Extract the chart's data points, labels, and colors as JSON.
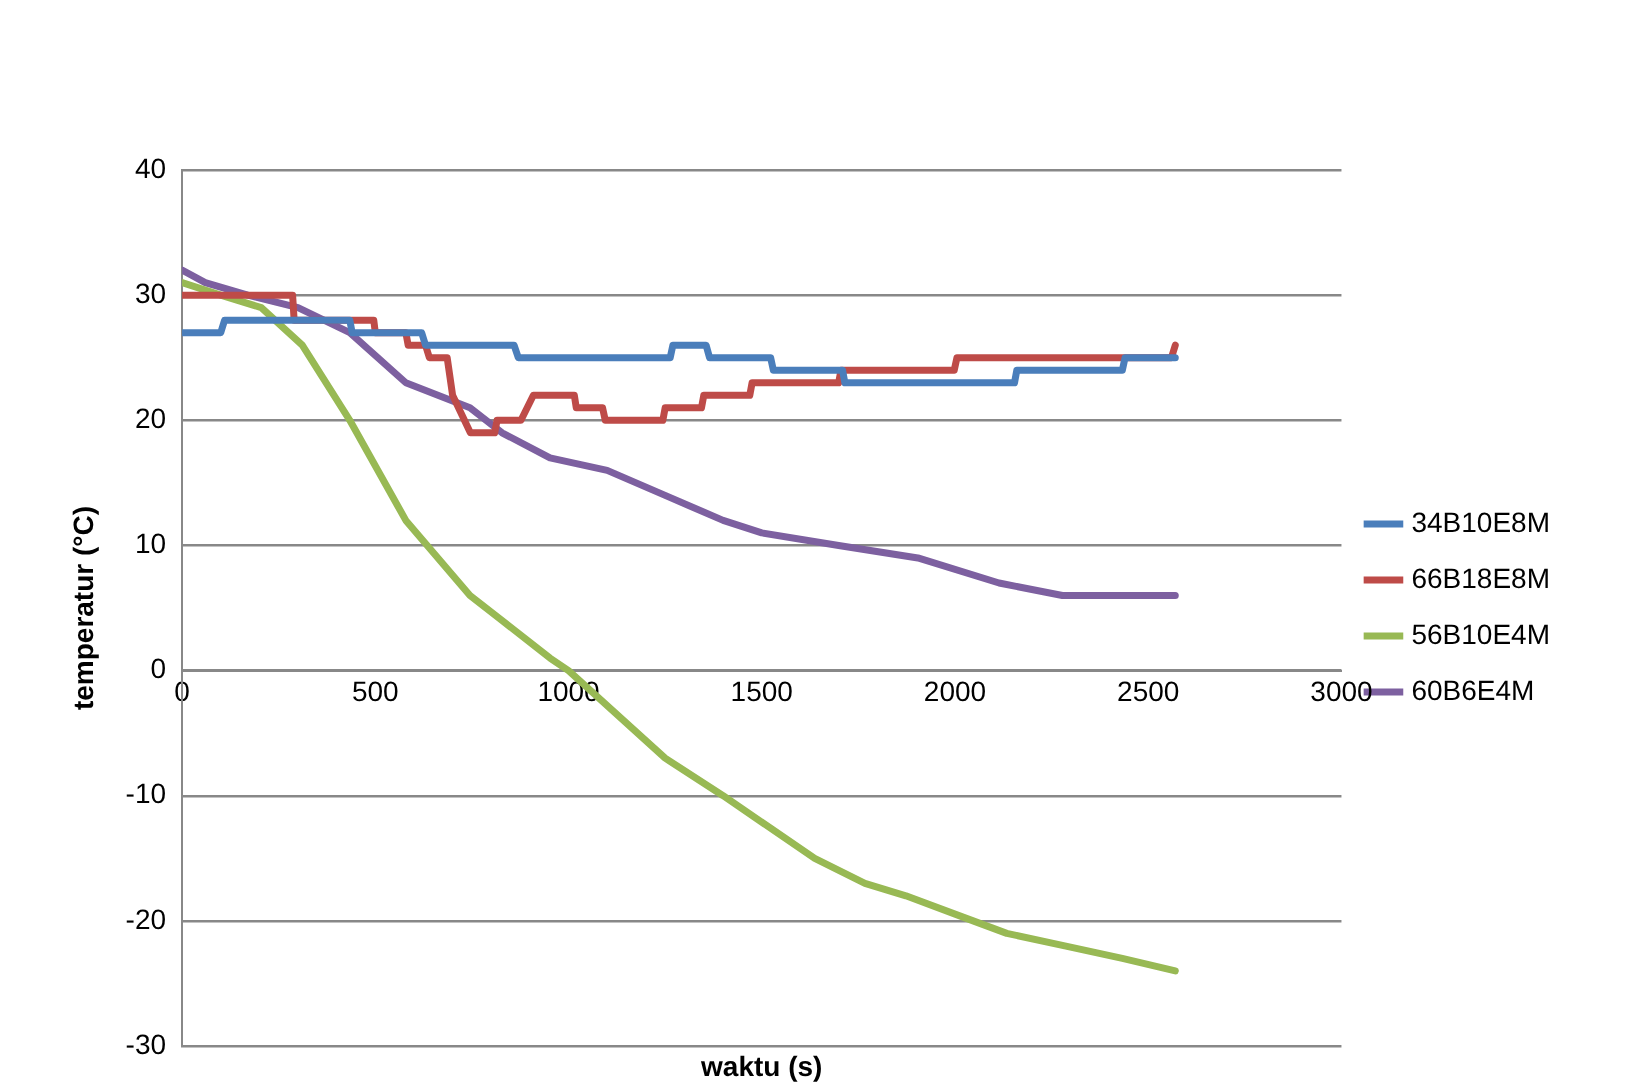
{
  "chart_data": {
    "type": "line",
    "xlabel": "waktu (s)",
    "ylabel": "temperatur (°C)",
    "xlim": [
      0,
      3000
    ],
    "xticks": [
      0,
      500,
      1000,
      1500,
      2000,
      2500,
      3000
    ],
    "ylim": [
      -30,
      40
    ],
    "yticks": [
      -30,
      -20,
      -10,
      0,
      10,
      20,
      30,
      40
    ],
    "grid": "y",
    "legend": "right",
    "marker": "none",
    "line_style": "solid",
    "series": [
      {
        "name": "34B10E8M",
        "color": "#4a7ebb",
        "x": [
          0,
          100,
          110,
          434,
          440,
          620,
          630,
          859,
          870,
          1263,
          1270,
          1356,
          1365,
          1523,
          1530,
          1709,
          1715,
          2154,
          2160,
          2433,
          2440,
          2570
        ],
        "values": [
          27,
          27,
          28,
          28,
          27,
          27,
          26,
          26,
          25,
          25,
          26,
          26,
          25,
          25,
          24,
          24,
          23,
          23,
          24,
          24,
          25,
          25
        ]
      },
      {
        "name": "66B18E8M",
        "color": "#be4b48",
        "x": [
          0,
          286,
          290,
          496,
          500,
          579,
          585,
          630,
          640,
          686,
          700,
          746,
          809,
          815,
          877,
          909,
          1015,
          1020,
          1088,
          1095,
          1244,
          1250,
          1344,
          1350,
          1469,
          1475,
          1699,
          1705,
          1998,
          2005,
          2560,
          2570
        ],
        "values": [
          30,
          30,
          28,
          28,
          27,
          27,
          26,
          26,
          25,
          25,
          22,
          19,
          19,
          20,
          20,
          22,
          22,
          21,
          21,
          20,
          20,
          21,
          21,
          22,
          22,
          23,
          23,
          24,
          24,
          25,
          25,
          26
        ]
      },
      {
        "name": "56B10E4M",
        "color": "#98b954",
        "x": [
          0,
          100,
          205,
          311,
          434,
          579,
          745,
          828,
          952,
          1000,
          1250,
          1400,
          1637,
          1767,
          1873,
          2047,
          2134,
          2284,
          2433,
          2570
        ],
        "values": [
          31,
          30,
          29,
          26,
          20,
          12,
          6,
          4,
          1,
          0,
          -7,
          -10,
          -15,
          -17,
          -18,
          -20,
          -21,
          -22,
          -23,
          -24
        ]
      },
      {
        "name": "60B6E4M",
        "color": "#7d60a0",
        "x": [
          0,
          60,
          170,
          300,
          434,
          579,
          745,
          828,
          952,
          1100,
          1250,
          1400,
          1500,
          1699,
          1904,
          2114,
          2278,
          2570
        ],
        "values": [
          32,
          31,
          30,
          29,
          27,
          23,
          21,
          19,
          17,
          16,
          14,
          12,
          11,
          10,
          9,
          7,
          6,
          6
        ]
      }
    ]
  }
}
